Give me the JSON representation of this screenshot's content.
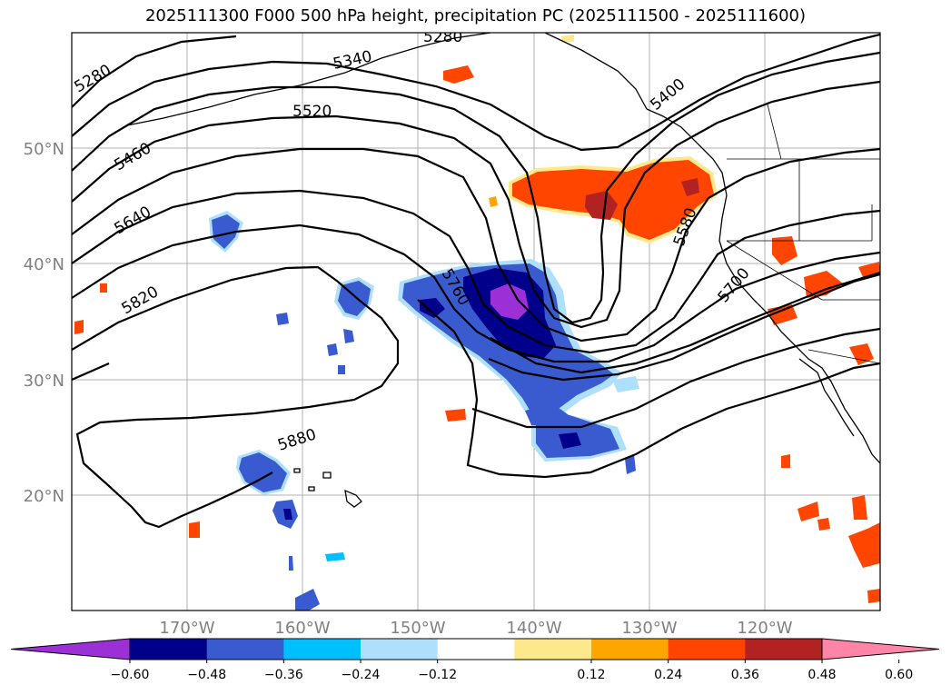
{
  "title": "2025111300 F000 500 hPa height, precipitation PC (2025111500 - 2025111600)",
  "map": {
    "lat_labels": [
      "50°N",
      "40°N",
      "30°N",
      "20°N"
    ],
    "lon_labels": [
      "170°W",
      "160°W",
      "150°W",
      "140°W",
      "130°W",
      "120°W"
    ],
    "contour_labels": [
      "5280",
      "5280",
      "5340",
      "5520",
      "5460",
      "5640",
      "5820",
      "5880",
      "5760",
      "5400",
      "5580",
      "5700"
    ]
  },
  "colorbar": {
    "colors": [
      "#9b30d6",
      "#00008b",
      "#3a5bd0",
      "#00bfff",
      "#aee0fb",
      "#ffffff",
      "#fde98c",
      "#ffa500",
      "#ff4500",
      "#b22222",
      "#ff85a8"
    ],
    "ticks": [
      "−0.60",
      "−0.48",
      "−0.36",
      "−0.24",
      "−0.12",
      "0.12",
      "0.24",
      "0.36",
      "0.48",
      "0.60"
    ]
  }
}
